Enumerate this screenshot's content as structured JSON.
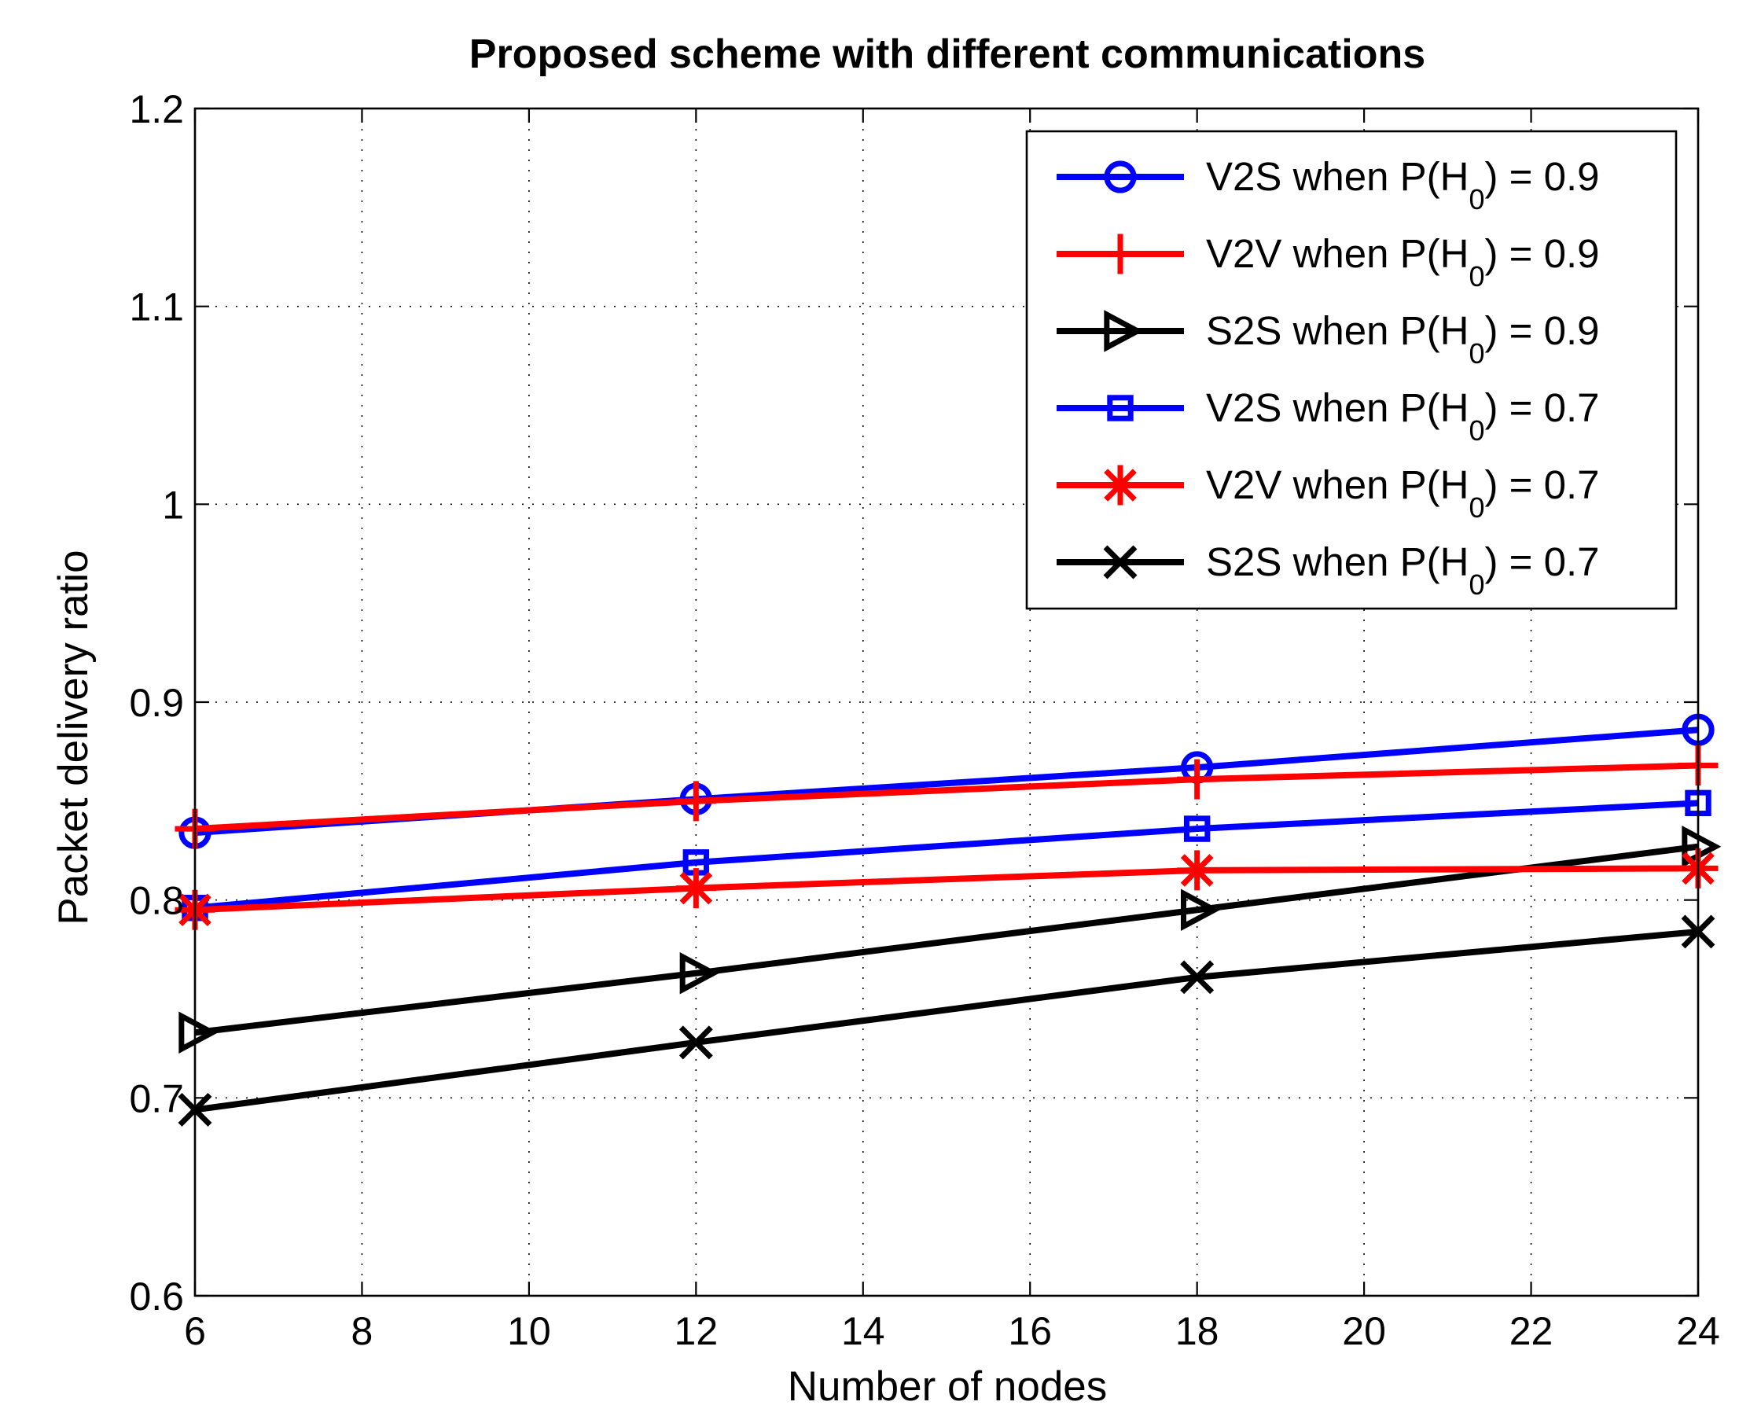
{
  "chart_data": {
    "type": "line",
    "title": "Proposed scheme with different communications",
    "xlabel": "Number of nodes",
    "ylabel": "Packet delivery ratio",
    "xlim": [
      6,
      24
    ],
    "ylim": [
      0.6,
      1.2
    ],
    "xticks": [
      6,
      8,
      10,
      12,
      14,
      16,
      18,
      20,
      22,
      24
    ],
    "xtick_labels": [
      "6",
      "8",
      "10",
      "12",
      "14",
      "16",
      "18",
      "20",
      "22",
      "24"
    ],
    "yticks": [
      0.6,
      0.7,
      0.8,
      0.9,
      1.0,
      1.1,
      1.2
    ],
    "ytick_labels": [
      "0.6",
      "0.7",
      "0.8",
      "0.9",
      "1",
      "1.1",
      "1.2"
    ],
    "grid": true,
    "legend_position": "top-right",
    "x": [
      6,
      12,
      18,
      24
    ],
    "series": [
      {
        "name": "V2S when P(H0) = 0.9",
        "label_main": "V2S when P(H",
        "label_sub": "0",
        "label_tail": ") = 0.9",
        "values": [
          0.834,
          0.851,
          0.867,
          0.886
        ],
        "color": "#0000ff",
        "marker": "circle"
      },
      {
        "name": "V2V when P(H0) = 0.9",
        "label_main": "V2V when P(H",
        "label_sub": "0",
        "label_tail": ") = 0.9",
        "values": [
          0.836,
          0.85,
          0.861,
          0.868
        ],
        "color": "#ff0000",
        "marker": "plus"
      },
      {
        "name": "S2S when P(H0) = 0.9",
        "label_main": "S2S when P(H",
        "label_sub": "0",
        "label_tail": ") = 0.9",
        "values": [
          0.733,
          0.763,
          0.795,
          0.827
        ],
        "color": "#000000",
        "marker": "triangle-right"
      },
      {
        "name": "V2S when P(H0) = 0.7",
        "label_main": "V2S when P(H",
        "label_sub": "0",
        "label_tail": ") = 0.7",
        "values": [
          0.796,
          0.819,
          0.836,
          0.849
        ],
        "color": "#0000ff",
        "marker": "square"
      },
      {
        "name": "V2V when P(H0) = 0.7",
        "label_main": "V2V when P(H",
        "label_sub": "0",
        "label_tail": ") = 0.7",
        "values": [
          0.795,
          0.806,
          0.815,
          0.816
        ],
        "color": "#ff0000",
        "marker": "asterisk"
      },
      {
        "name": "S2S when P(H0) = 0.7",
        "label_main": "S2S when P(H",
        "label_sub": "0",
        "label_tail": ") = 0.7",
        "values": [
          0.694,
          0.728,
          0.761,
          0.784
        ],
        "color": "#000000",
        "marker": "x"
      }
    ]
  }
}
